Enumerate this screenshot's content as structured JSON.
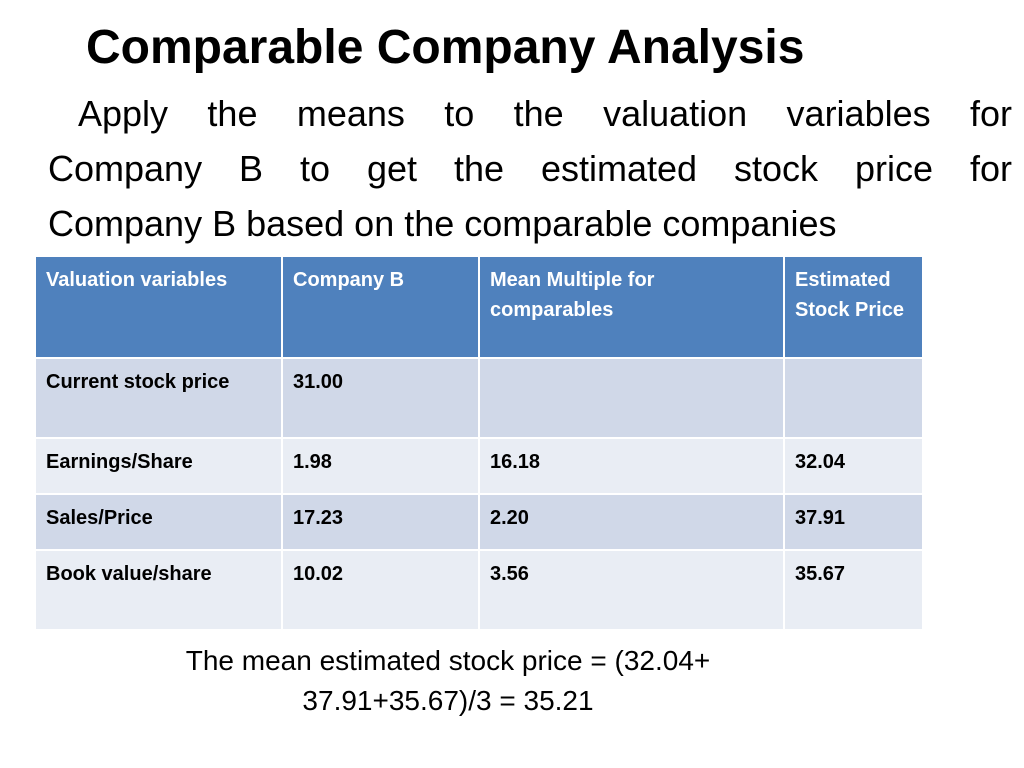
{
  "slide": {
    "title": "Comparable Company Analysis",
    "body_lines": [
      "Apply the means to the valuation variables for",
      "Company B to get the estimated stock price for",
      "Company B based on the comparable companies"
    ],
    "summary_lines": [
      "The mean estimated stock price = (32.04+",
      "37.91+35.67)/3 = 35.21"
    ]
  },
  "table": {
    "headers": [
      "Valuation variables",
      "Company B",
      "Mean Multiple for comparables",
      "Estimated Stock Price"
    ],
    "rows": [
      [
        "Current stock price",
        "31.00",
        "",
        ""
      ],
      [
        "Earnings/Share",
        "1.98",
        "16.18",
        "32.04"
      ],
      [
        "Sales/Price",
        "17.23",
        "2.20",
        "37.91"
      ],
      [
        "Book value/share",
        "10.02",
        "3.56",
        "35.67"
      ]
    ]
  },
  "colors": {
    "header_fill": "#4f81bd",
    "row_band_dark": "#d0d8e8",
    "row_band_light": "#e9edf4"
  }
}
